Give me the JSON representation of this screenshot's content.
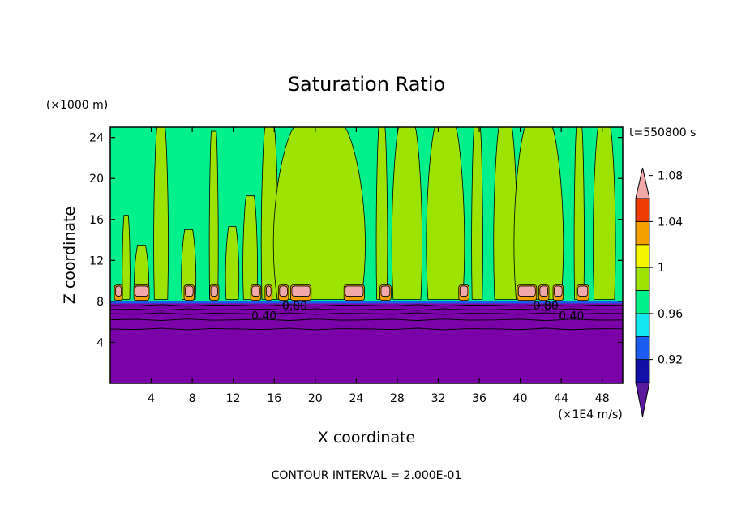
{
  "chart_data": {
    "type": "heatmap",
    "title": "Saturation Ratio",
    "xlabel": "X coordinate",
    "ylabel": "Z coordinate",
    "x_units": "(×1E4 m/s)",
    "y_units": "(×1000 m)",
    "time_label": "t=550800 s",
    "footer": "CONTOUR INTERVAL = 2.000E-01",
    "xlim": [
      0,
      50
    ],
    "ylim": [
      0,
      25
    ],
    "x_ticks": [
      4,
      8,
      12,
      16,
      20,
      24,
      28,
      32,
      36,
      40,
      44,
      48
    ],
    "y_ticks": [
      4,
      8,
      12,
      16,
      20,
      24
    ],
    "contour_labels": [
      {
        "text": "0.80",
        "x": 18,
        "z": 7.6
      },
      {
        "text": "0.40",
        "x": 15,
        "z": 6.6
      },
      {
        "text": "0.80",
        "x": 42.5,
        "z": 7.6
      },
      {
        "text": "0.40",
        "x": 45,
        "z": 6.6
      }
    ],
    "colorbar": {
      "levels": [
        0.92,
        0.96,
        1,
        1.04,
        1.08
      ],
      "tick_labels": [
        "0.92",
        "0.96",
        "1",
        "1.04",
        "1.08"
      ],
      "colors": [
        "#5b1a9e",
        "#1010a8",
        "#1a5cf0",
        "#14e6f0",
        "#00f08c",
        "#9ce400",
        "#f6f600",
        "#f6a000",
        "#f03c00",
        "#f0a8a8"
      ]
    },
    "fields": {
      "base": {
        "range": "0–1",
        "color": "#00f08c"
      },
      "supersat_columns": {
        "color": "#9ce400"
      },
      "boundary_layer": {
        "z_top": 7.8,
        "color": "#7a00a8"
      },
      "columns": [
        {
          "x0": 1.2,
          "x1": 1.9,
          "z1": 16.4
        },
        {
          "x0": 2.4,
          "x1": 3.7,
          "z1": 13.5
        },
        {
          "x0": 4.3,
          "x1": 5.6,
          "z1": 25
        },
        {
          "x0": 7.0,
          "x1": 8.3,
          "z1": 15.0
        },
        {
          "x0": 9.7,
          "x1": 10.5,
          "z1": 24.6
        },
        {
          "x0": 11.3,
          "x1": 12.5,
          "z1": 15.3
        },
        {
          "x0": 13.0,
          "x1": 14.3,
          "z1": 18.3
        },
        {
          "x0": 14.8,
          "x1": 16.3,
          "z1": 25
        },
        {
          "x0": 16.3,
          "x1": 24.5,
          "z1": 25
        },
        {
          "x0": 26.0,
          "x1": 27.0,
          "z1": 25
        },
        {
          "x0": 27.6,
          "x1": 30.3,
          "z1": 25
        },
        {
          "x0": 31.0,
          "x1": 34.4,
          "z1": 25
        },
        {
          "x0": 35.3,
          "x1": 36.3,
          "z1": 25
        },
        {
          "x0": 37.5,
          "x1": 39.6,
          "z1": 25
        },
        {
          "x0": 39.6,
          "x1": 44.0,
          "z1": 25
        },
        {
          "x0": 45.3,
          "x1": 46.2,
          "z1": 25
        },
        {
          "x0": 47.2,
          "x1": 49.2,
          "z1": 25
        }
      ],
      "pink_blobs": [
        {
          "x0": 0.4,
          "x1": 1.2
        },
        {
          "x0": 2.3,
          "x1": 3.8
        },
        {
          "x0": 7.2,
          "x1": 8.2
        },
        {
          "x0": 9.7,
          "x1": 10.6
        },
        {
          "x0": 13.7,
          "x1": 14.7
        },
        {
          "x0": 15.1,
          "x1": 15.8
        },
        {
          "x0": 16.4,
          "x1": 17.4
        },
        {
          "x0": 17.6,
          "x1": 19.6
        },
        {
          "x0": 22.8,
          "x1": 24.8
        },
        {
          "x0": 26.3,
          "x1": 27.4
        },
        {
          "x0": 34.0,
          "x1": 35.0
        },
        {
          "x0": 39.7,
          "x1": 41.6
        },
        {
          "x0": 41.8,
          "x1": 42.8
        },
        {
          "x0": 43.2,
          "x1": 44.2
        },
        {
          "x0": 45.5,
          "x1": 46.7
        }
      ]
    }
  }
}
